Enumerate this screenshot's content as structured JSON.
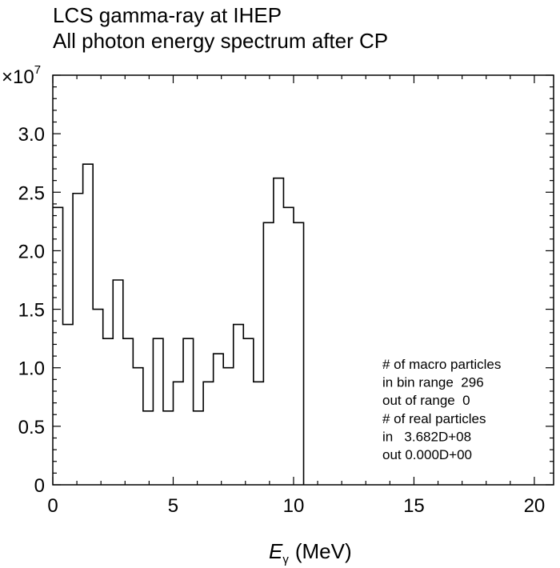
{
  "chart_data": {
    "type": "histogram",
    "title": "LCS gamma-ray at IHEP",
    "subtitle": "All photon energy spectrum after CP",
    "xlabel_symbol": "E",
    "xlabel_subscript": "γ",
    "xlabel_unit": "(MeV)",
    "y_scale_label": "×10",
    "y_scale_exponent": "7",
    "xlim": [
      0,
      20.8
    ],
    "ylim": [
      0,
      3.5
    ],
    "x_ticks": [
      0,
      5,
      10,
      15,
      20
    ],
    "x_tick_labels": [
      "0",
      "5",
      "10",
      "15",
      "20"
    ],
    "y_ticks": [
      0,
      0.5,
      1.0,
      1.5,
      2.0,
      2.5,
      3.0
    ],
    "y_tick_labels": [
      "0",
      "0.5",
      "1.0",
      "1.5",
      "2.0",
      "2.5",
      "3.0"
    ],
    "bin_width": 0.4167,
    "x_start": 0,
    "values": [
      2.37,
      1.37,
      2.49,
      2.74,
      1.5,
      1.25,
      1.75,
      1.25,
      1.0,
      0.63,
      1.25,
      0.63,
      0.88,
      1.25,
      0.63,
      0.88,
      1.12,
      1.0,
      1.37,
      1.25,
      0.88,
      2.24,
      2.62,
      2.37,
      2.24
    ],
    "annotations": [
      "# of macro particles",
      "in bin range  296",
      "out of range  0",
      "# of real particles",
      "in   3.682D+08",
      "out 0.000D+00"
    ]
  }
}
